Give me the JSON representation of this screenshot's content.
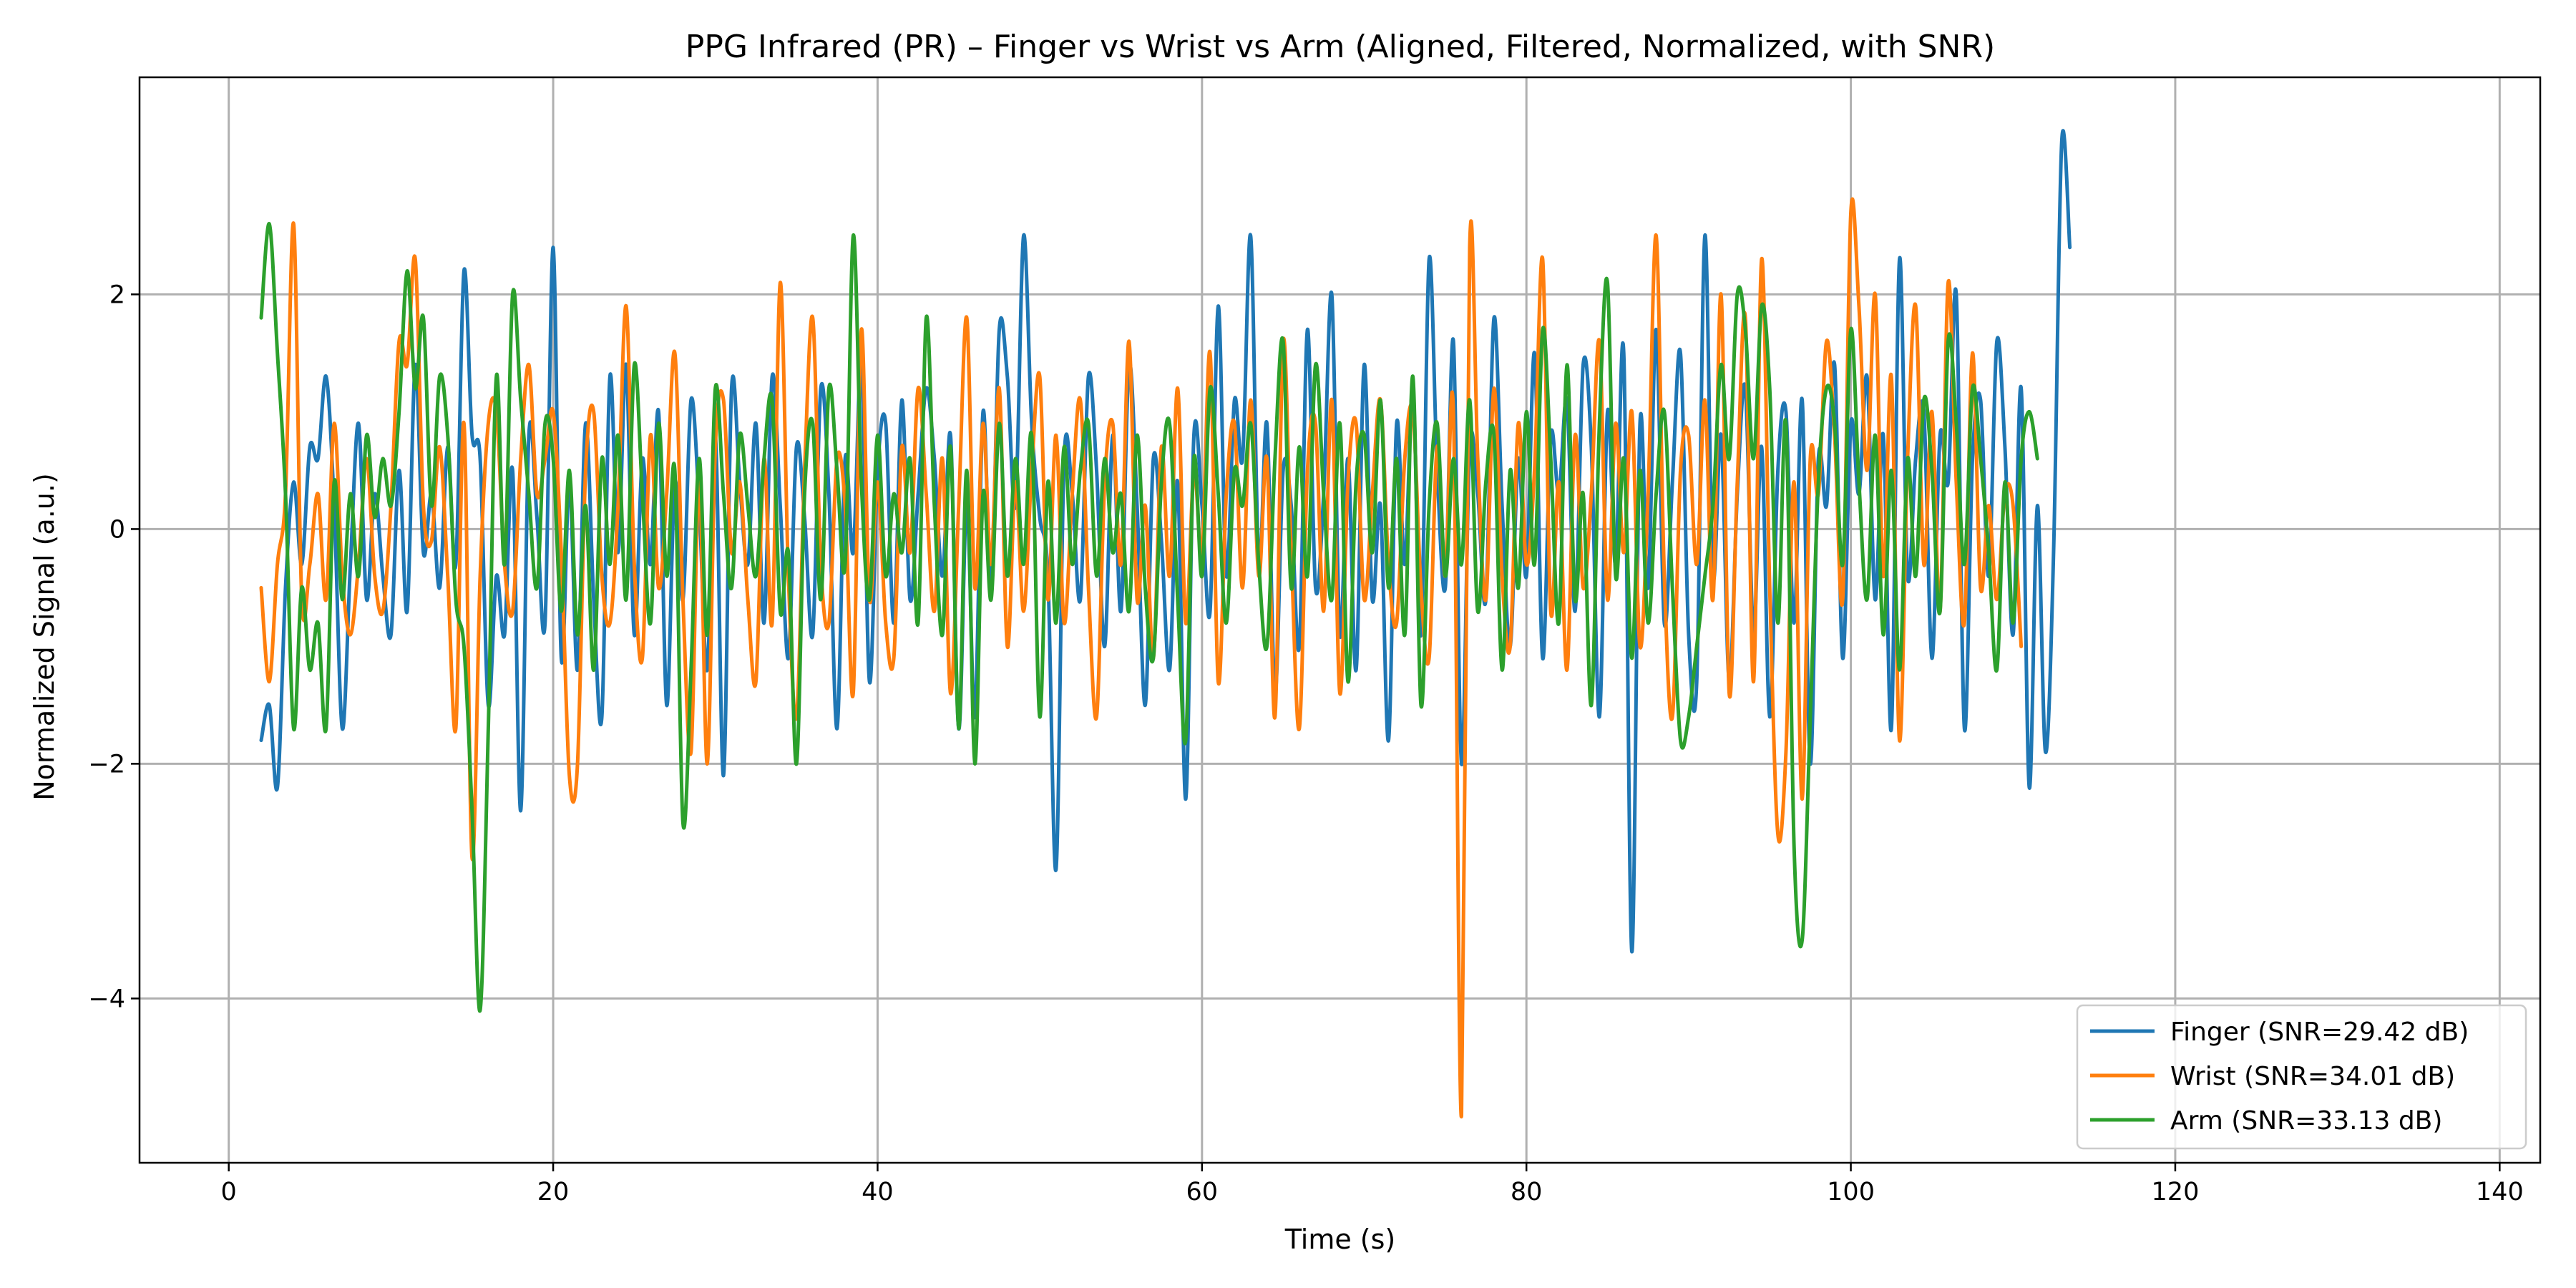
{
  "chart_data": {
    "type": "line",
    "title": "PPG Infrared (PR) – Finger vs Wrist vs Arm (Aligned, Filtered, Normalized, with SNR)",
    "xlabel": "Time (s)",
    "ylabel": "Normalized Signal (a.u.)",
    "xlim": [
      -5.5,
      142.5
    ],
    "ylim": [
      -5.4,
      3.85
    ],
    "x_ticks": [
      0,
      20,
      40,
      60,
      80,
      100,
      120,
      140
    ],
    "x_tick_labels": [
      "0",
      "20",
      "40",
      "60",
      "80",
      "100",
      "120",
      "140"
    ],
    "y_ticks": [
      -4,
      -2,
      0,
      2
    ],
    "y_tick_labels": [
      "−4",
      "−2",
      "0",
      "2"
    ],
    "grid": true,
    "legend_position": "bottom-right",
    "sample_interval_s": 0.5,
    "x_start": 2.0,
    "series": [
      {
        "name": "Finger (SNR=29.42 dB)",
        "color": "#1f77b4",
        "values": [
          -1.8,
          -1.5,
          -2.2,
          -0.5,
          0.4,
          -0.3,
          0.7,
          0.6,
          1.3,
          0.2,
          -1.7,
          -0.3,
          0.9,
          -0.6,
          0.3,
          -0.4,
          -0.9,
          0.5,
          -0.7,
          1.4,
          -0.2,
          0.3,
          -0.5,
          0.7,
          -0.3,
          2.2,
          0.8,
          0.6,
          -1.5,
          -0.4,
          -0.9,
          0.5,
          -2.4,
          0.8,
          0.1,
          -0.8,
          2.4,
          -1.1,
          0.4,
          -1.2,
          0.9,
          -0.6,
          -1.6,
          1.3,
          -0.2,
          1.4,
          -0.9,
          0.6,
          -0.3,
          1.0,
          -1.5,
          0.4,
          -0.6,
          1.1,
          0.2,
          -1.2,
          0.8,
          -2.1,
          1.2,
          0.4,
          -0.3,
          0.9,
          -0.8,
          1.3,
          0.2,
          -1.1,
          0.7,
          0.1,
          -0.9,
          1.2,
          0.3,
          -1.7,
          0.6,
          -0.2,
          1.4,
          -1.3,
          0.5,
          0.9,
          -0.8,
          1.1,
          -0.6,
          0.3,
          1.2,
          0.6,
          -0.4,
          0.8,
          -1.7,
          0.2,
          -1.6,
          1.0,
          -0.5,
          1.7,
          1.3,
          0.2,
          2.5,
          0.9,
          0.1,
          -0.4,
          -2.9,
          0.6,
          0.3,
          -0.6,
          1.3,
          0.5,
          -1.0,
          0.8,
          -0.7,
          1.4,
          0.2,
          -1.5,
          0.6,
          -0.1,
          -1.2,
          0.4,
          -2.3,
          0.8,
          0.2,
          -0.7,
          1.9,
          -0.4,
          1.1,
          0.6,
          2.5,
          -0.3,
          0.9,
          -1.4,
          0.5,
          0.2,
          -1.0,
          1.7,
          -0.5,
          0.3,
          2.0,
          -0.9,
          0.6,
          -1.2,
          1.4,
          -0.6,
          0.2,
          -1.8,
          0.9,
          -0.3,
          1.2,
          -0.9,
          2.3,
          0.5,
          -0.5,
          1.6,
          -2.0,
          0.7,
          0.3,
          -0.6,
          1.8,
          0.2,
          -1.0,
          0.6,
          -0.4,
          1.5,
          -1.1,
          0.8,
          0.3,
          1.1,
          -0.7,
          1.4,
          0.7,
          -1.6,
          1.0,
          -0.3,
          1.5,
          -3.6,
          0.9,
          -0.5,
          1.7,
          -0.8,
          0.4,
          1.5,
          -0.9,
          -1.3,
          2.5,
          -0.4,
          0.8,
          -1.3,
          0.3,
          1.2,
          -0.9,
          0.7,
          -1.6,
          0.5,
          1.0,
          -0.8,
          1.1,
          -2.0,
          0.6,
          0.2,
          1.4,
          -1.1,
          0.9,
          0.3,
          1.3,
          -0.6,
          0.8,
          -1.7,
          2.3,
          -0.4,
          0.6,
          1.0,
          -1.1,
          0.8,
          0.4,
          2.0,
          -1.7,
          0.6,
          1.1,
          -0.4,
          1.6,
          0.7,
          -0.9,
          1.2,
          -2.2,
          0.2,
          -1.9,
          -0.2,
          3.3,
          2.4
        ]
      },
      {
        "name": "Wrist (SNR=34.01 dB)",
        "color": "#ff7f0e",
        "values": [
          -0.5,
          -1.3,
          -0.3,
          0.3,
          2.6,
          -0.6,
          -0.3,
          0.3,
          -0.6,
          0.9,
          -0.4,
          -0.9,
          -0.3,
          0.6,
          -0.4,
          -0.7,
          0.2,
          1.6,
          1.4,
          2.3,
          0.2,
          -0.1,
          0.7,
          -0.4,
          -1.7,
          0.9,
          -2.8,
          -0.4,
          0.9,
          1.0,
          -0.3,
          -0.7,
          0.6,
          1.4,
          0.3,
          0.6,
          1.0,
          -0.2,
          -2.1,
          -2.0,
          0.5,
          1.0,
          -0.4,
          -0.8,
          0.2,
          1.9,
          -0.3,
          -1.1,
          0.8,
          -0.5,
          0.3,
          1.5,
          -0.6,
          -1.9,
          0.4,
          -2.0,
          0.7,
          1.1,
          -0.2,
          0.4,
          -0.6,
          -1.3,
          0.6,
          -0.8,
          2.1,
          -0.4,
          -1.6,
          0.5,
          1.8,
          -0.3,
          -0.8,
          0.6,
          0.2,
          -1.4,
          1.7,
          -0.6,
          0.4,
          -0.8,
          -1.1,
          0.7,
          -0.2,
          1.2,
          0.3,
          -0.7,
          0.6,
          -1.4,
          0.2,
          1.8,
          -0.5,
          0.9,
          -0.3,
          1.2,
          -1.0,
          0.4,
          -0.7,
          0.5,
          1.3,
          -0.6,
          0.8,
          -0.8,
          0.3,
          1.1,
          -0.5,
          -1.6,
          0.4,
          0.9,
          -0.3,
          1.6,
          -0.6,
          0.2,
          -1.1,
          0.7,
          -0.4,
          1.2,
          -0.8,
          0.5,
          -0.2,
          1.5,
          -1.3,
          0.3,
          0.9,
          -0.5,
          1.1,
          -0.4,
          0.6,
          -1.6,
          1.6,
          -0.2,
          -1.7,
          0.5,
          0.9,
          -0.7,
          1.1,
          -1.4,
          0.4,
          0.9,
          -0.6,
          0.3,
          1.1,
          -0.3,
          -0.8,
          0.6,
          1.0,
          -0.5,
          -1.1,
          0.7,
          -0.4,
          1.0,
          -5.0,
          2.4,
          0.6,
          -0.6,
          1.2,
          -0.4,
          -1.0,
          0.9,
          -0.3,
          0.5,
          2.3,
          -0.7,
          0.4,
          -1.2,
          0.8,
          -0.5,
          0.3,
          1.6,
          -0.6,
          0.9,
          -0.2,
          1.0,
          -1.0,
          0.3,
          2.5,
          -0.4,
          -1.6,
          0.5,
          0.8,
          -0.3,
          1.1,
          -0.6,
          2.0,
          -1.4,
          0.4,
          1.8,
          -1.3,
          2.3,
          -0.5,
          -2.6,
          -1.9,
          0.4,
          -2.3,
          0.6,
          0.3,
          1.6,
          0.8,
          -0.6,
          2.7,
          1.9,
          0.5,
          2.0,
          -0.4,
          1.3,
          -1.8,
          0.6,
          1.9,
          -0.3,
          1.0,
          -0.7,
          2.1,
          0.4,
          -0.8,
          1.5,
          -0.5,
          0.2,
          -0.6,
          0.3,
          0.2,
          -1.0
        ]
      },
      {
        "name": "Arm (SNR=33.13 dB)",
        "color": "#2ca02c",
        "values": [
          1.8,
          2.6,
          1.5,
          0.3,
          -1.7,
          -0.5,
          -1.2,
          -0.8,
          -1.7,
          0.4,
          -0.6,
          0.3,
          -0.4,
          0.8,
          0.1,
          0.6,
          0.2,
          1.0,
          2.2,
          1.2,
          1.8,
          0.2,
          1.3,
          0.8,
          -0.6,
          -1.0,
          -2.4,
          -4.1,
          -1.7,
          1.3,
          -0.3,
          2.0,
          1.1,
          0.3,
          -0.5,
          0.9,
          0.6,
          -0.7,
          0.5,
          -0.9,
          0.2,
          -1.2,
          0.6,
          -0.3,
          0.8,
          -0.6,
          1.4,
          0.3,
          -0.8,
          0.9,
          -0.4,
          0.5,
          -2.5,
          -1.2,
          0.6,
          -0.9,
          1.2,
          0.3,
          -0.5,
          0.8,
          0.2,
          -0.4,
          0.6,
          1.1,
          -0.7,
          -0.2,
          -2.0,
          0.3,
          0.9,
          -0.6,
          1.2,
          0.5,
          -0.3,
          2.5,
          0.4,
          -0.6,
          0.8,
          -0.4,
          0.3,
          -0.2,
          0.6,
          -0.8,
          1.8,
          0.2,
          -0.9,
          0.7,
          -1.7,
          0.5,
          -2.0,
          0.3,
          -0.6,
          0.9,
          -0.4,
          0.6,
          -0.3,
          0.8,
          -1.6,
          0.4,
          -0.8,
          0.7,
          -0.3,
          0.5,
          0.9,
          -0.4,
          0.6,
          -0.2,
          0.3,
          -0.7,
          0.8,
          -0.5,
          -1.1,
          0.4,
          0.9,
          -0.6,
          -1.8,
          0.6,
          -0.4,
          1.2,
          0.3,
          -0.8,
          0.5,
          0.2,
          0.9,
          -0.3,
          -1.0,
          0.6,
          1.6,
          -0.5,
          0.7,
          -0.4,
          1.4,
          0.3,
          -0.6,
          0.9,
          -1.3,
          0.4,
          0.8,
          -0.2,
          1.1,
          -0.5,
          0.6,
          -0.9,
          1.3,
          -1.5,
          0.2,
          0.9,
          -0.4,
          0.6,
          -0.3,
          1.1,
          -0.7,
          0.4,
          0.8,
          -1.2,
          0.5,
          -0.5,
          1.0,
          -0.3,
          1.7,
          0.6,
          -0.8,
          1.4,
          -0.6,
          0.3,
          -1.5,
          0.9,
          2.1,
          -0.4,
          0.6,
          -1.1,
          0.5,
          -0.8,
          0.3,
          1.0,
          -0.5,
          -1.8,
          -1.6,
          -1.0,
          -0.4,
          0.2,
          1.4,
          0.6,
          2.0,
          1.7,
          0.6,
          1.9,
          1.2,
          -0.8,
          0.9,
          -2.7,
          -3.5,
          -1.6,
          0.4,
          1.2,
          0.9,
          -0.3,
          1.7,
          0.4,
          -0.6,
          0.8,
          -0.9,
          0.5,
          -1.2,
          0.6,
          -0.4,
          1.1,
          0.5,
          -0.7,
          1.6,
          0.9,
          -0.3,
          1.2,
          0.6,
          -0.2,
          -1.2,
          0.4,
          -0.8,
          0.6,
          1.0,
          0.6
        ]
      }
    ]
  }
}
